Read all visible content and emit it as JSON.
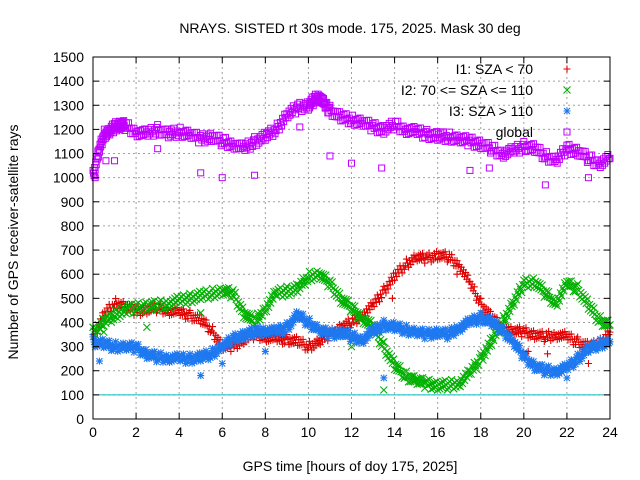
{
  "chart_data": {
    "type": "scatter",
    "title": "NRAYS. SISTED rt 30s mode. 175, 2025. Mask 30 deg",
    "xlabel": "GPS time [hours of doy 175, 2025]",
    "ylabel": "Number of GPS receiver-satellite rays",
    "xlim": [
      0,
      24
    ],
    "ylim": [
      0,
      1500
    ],
    "xticks": [
      0,
      2,
      4,
      6,
      8,
      10,
      12,
      14,
      16,
      18,
      20,
      22,
      24
    ],
    "yticks": [
      0,
      100,
      200,
      300,
      400,
      500,
      600,
      700,
      800,
      900,
      1000,
      1100,
      1200,
      1300,
      1400,
      1500
    ],
    "grid": true,
    "legend_position": "top-right",
    "reference_line": {
      "y": 100,
      "color": "#00c0c0"
    },
    "series": [
      {
        "name": "I1: SZA < 70",
        "marker": "+",
        "color": "#e00000",
        "x": [
          0,
          0.5,
          1,
          1.5,
          2,
          2.5,
          3,
          3.5,
          4,
          4.5,
          5,
          5.5,
          6,
          6.5,
          7,
          7.5,
          8,
          8.5,
          9,
          9.5,
          10,
          10.5,
          11,
          11.5,
          12,
          12.5,
          13,
          13.5,
          14,
          14.5,
          15,
          15.5,
          16,
          16.5,
          17,
          17.5,
          18,
          18.5,
          19,
          19.5,
          20,
          20.5,
          21,
          21.5,
          22,
          22.5,
          23,
          23.5,
          24
        ],
        "y": [
          330,
          430,
          480,
          470,
          445,
          455,
          460,
          450,
          440,
          430,
          410,
          370,
          300,
          300,
          330,
          350,
          340,
          330,
          330,
          320,
          300,
          320,
          350,
          380,
          400,
          430,
          470,
          530,
          590,
          640,
          670,
          665,
          680,
          670,
          640,
          560,
          480,
          420,
          380,
          365,
          360,
          350,
          340,
          350,
          340,
          320,
          300,
          310,
          360
        ]
      },
      {
        "name": "I2: 70 <= SZA <= 110",
        "marker": "x",
        "color": "#00b000",
        "x": [
          0,
          0.5,
          1,
          1.5,
          2,
          2.5,
          3,
          3.5,
          4,
          4.5,
          5,
          5.5,
          6,
          6.5,
          7,
          7.5,
          8,
          8.5,
          9,
          9.5,
          10,
          10.5,
          11,
          11.5,
          12,
          12.5,
          13,
          13.5,
          14,
          14.5,
          15,
          15.5,
          16,
          16.5,
          17,
          17.5,
          18,
          18.5,
          19,
          19.5,
          20,
          20.5,
          21,
          21.5,
          22,
          22.5,
          23,
          23.5,
          24
        ],
        "y": [
          360,
          400,
          430,
          450,
          460,
          470,
          470,
          480,
          490,
          500,
          510,
          520,
          530,
          520,
          440,
          400,
          460,
          520,
          530,
          540,
          590,
          600,
          560,
          500,
          460,
          420,
          380,
          300,
          220,
          180,
          160,
          145,
          140,
          140,
          150,
          190,
          250,
          320,
          400,
          480,
          560,
          570,
          520,
          480,
          560,
          540,
          470,
          410,
          390
        ]
      },
      {
        "name": "I3: SZA > 110",
        "marker": "*",
        "color": "#1e78f0",
        "x": [
          0,
          0.5,
          1,
          1.5,
          2,
          2.5,
          3,
          3.5,
          4,
          4.5,
          5,
          5.5,
          6,
          6.5,
          7,
          7.5,
          8,
          8.5,
          9,
          9.5,
          10,
          10.5,
          11,
          11.5,
          12,
          12.5,
          13,
          13.5,
          14,
          14.5,
          15,
          15.5,
          16,
          16.5,
          17,
          17.5,
          18,
          18.5,
          19,
          19.5,
          20,
          20.5,
          21,
          21.5,
          22,
          22.5,
          23,
          23.5,
          24
        ],
        "y": [
          320,
          310,
          300,
          300,
          295,
          270,
          255,
          255,
          250,
          250,
          255,
          270,
          300,
          330,
          350,
          360,
          370,
          360,
          380,
          430,
          400,
          370,
          350,
          360,
          340,
          330,
          360,
          390,
          380,
          370,
          360,
          350,
          360,
          350,
          380,
          400,
          420,
          400,
          370,
          320,
          260,
          220,
          200,
          200,
          210,
          250,
          290,
          310,
          320
        ]
      },
      {
        "name": "global",
        "marker": "square",
        "color": "#c000ff",
        "x": [
          0,
          0.25,
          0.5,
          0.75,
          1,
          1.25,
          1.5,
          2,
          2.5,
          3,
          3.5,
          4,
          4.5,
          5,
          5.5,
          6,
          6.5,
          7,
          7.5,
          8,
          8.5,
          9,
          9.5,
          10,
          10.25,
          10.5,
          10.75,
          11,
          11.5,
          12,
          12.5,
          13,
          13.5,
          14,
          14.5,
          15,
          15.5,
          16,
          16.5,
          17,
          17.5,
          18,
          18.5,
          19,
          19.5,
          20,
          20.5,
          21,
          21.5,
          22,
          22.5,
          23,
          23.5,
          24
        ],
        "y": [
          1010,
          1100,
          1180,
          1190,
          1210,
          1220,
          1215,
          1190,
          1180,
          1200,
          1180,
          1190,
          1180,
          1160,
          1170,
          1150,
          1140,
          1120,
          1150,
          1170,
          1200,
          1260,
          1290,
          1300,
          1320,
          1340,
          1300,
          1280,
          1250,
          1240,
          1230,
          1210,
          1200,
          1220,
          1200,
          1190,
          1180,
          1170,
          1170,
          1160,
          1150,
          1140,
          1120,
          1100,
          1110,
          1130,
          1120,
          1090,
          1070,
          1120,
          1110,
          1080,
          1060,
          1080
        ]
      }
    ],
    "outliers": [
      {
        "series": "global",
        "x": [
          0.1,
          0.6,
          1.0,
          3.0,
          5.0,
          6.0,
          7.5,
          9.6,
          11.0,
          12.0,
          13.4,
          17.5,
          18.4,
          21.0,
          23.0
        ],
        "y": [
          1000,
          1070,
          1070,
          1120,
          1020,
          1000,
          1010,
          1210,
          1090,
          1060,
          1040,
          1030,
          1040,
          970,
          1000
        ]
      },
      {
        "series": "I3: SZA > 110",
        "x": [
          0.3,
          5.0,
          6.0,
          8.0,
          13.5,
          22.0
        ],
        "y": [
          240,
          180,
          230,
          280,
          170,
          170
        ]
      },
      {
        "series": "I2: 70 <= SZA <= 110",
        "x": [
          0.5,
          2.5,
          5.0,
          12.0,
          13.5
        ],
        "y": [
          360,
          380,
          440,
          300,
          120
        ]
      },
      {
        "series": "I1: SZA < 70",
        "x": [
          13.9,
          16.9,
          20.2,
          21.1,
          23.0
        ],
        "y": [
          500,
          600,
          280,
          270,
          230
        ]
      }
    ]
  }
}
